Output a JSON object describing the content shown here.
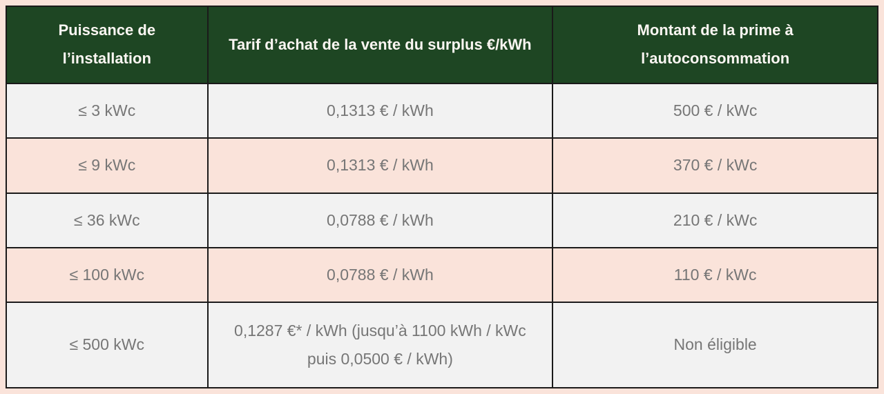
{
  "table": {
    "columns": [
      {
        "label": "Puissance de l’installation"
      },
      {
        "label": "Tarif d’achat de la vente du surplus €/kWh"
      },
      {
        "label": "Montant de la prime à l’autoconsommation"
      }
    ],
    "rows": [
      {
        "cells": [
          "≤ 3 kWc",
          "0,1313 € / kWh",
          "500 € / kWc"
        ]
      },
      {
        "cells": [
          "≤ 9 kWc",
          "0,1313 € / kWh",
          "370 € / kWc"
        ]
      },
      {
        "cells": [
          "≤ 36 kWc",
          "0,0788 € / kWh",
          "210 € / kWc"
        ]
      },
      {
        "cells": [
          "≤ 100 kWc",
          "0,0788 € / kWh",
          "110 € / kWc"
        ]
      },
      {
        "cells": [
          "≤ 500 kWc",
          "0,1287 €* / kWh (jusqu’à 1100 kWh / kWc puis 0,0500 € / kWh)",
          "Non éligible"
        ]
      }
    ]
  },
  "colors": {
    "header_background": "#1e4623",
    "header_text": "#fbf6f2",
    "row_gray": "#f2f2f2",
    "row_pink": "#fae3da",
    "page_margin": "#fae3da",
    "border": "#1a1a1a",
    "body_text": "#767676"
  }
}
